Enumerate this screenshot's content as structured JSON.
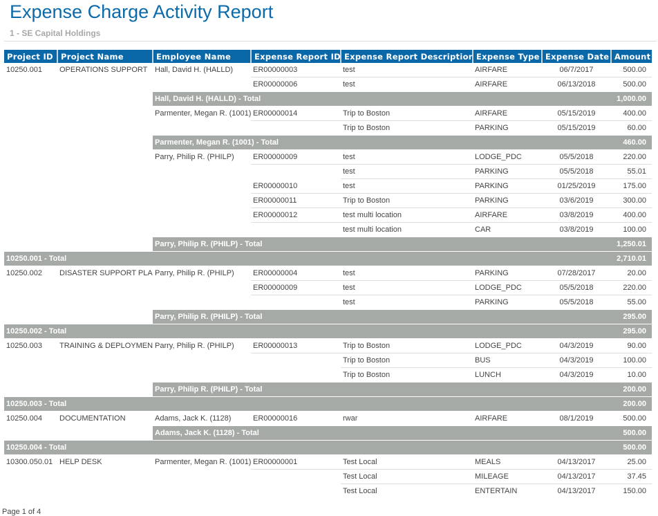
{
  "title": "Expense Charge Activity Report",
  "subtitle": "1 - SE Capital Holdings",
  "columns": [
    "Project ID",
    "Project Name",
    "Employee Name",
    "Expense Report ID",
    "Expense Report Description",
    "Expense Type",
    "Expense Date",
    "Amount"
  ],
  "rows": [
    {
      "type": "data",
      "cells": [
        "10250.001",
        "OPERATIONS SUPPORT",
        "Hall, David H. (HALLD)",
        "ER00000003",
        "test",
        "AIRFARE",
        "06/7/2017",
        "500.00"
      ]
    },
    {
      "type": "data",
      "cells": [
        "",
        "",
        "",
        "ER00000006",
        "test",
        "AIRFARE",
        "06/13/2018",
        "500.00"
      ]
    },
    {
      "type": "emp",
      "label": "Hall, David H. (HALLD) - Total",
      "amount": "1,000.00"
    },
    {
      "type": "data",
      "cells": [
        "",
        "",
        "Parmenter, Megan R. (1001)",
        "ER00000014",
        "Trip to Boston",
        "AIRFARE",
        "05/15/2019",
        "400.00"
      ]
    },
    {
      "type": "data",
      "cells": [
        "",
        "",
        "",
        "",
        "Trip to Boston",
        "PARKING",
        "05/15/2019",
        "60.00"
      ]
    },
    {
      "type": "emp",
      "label": "Parmenter, Megan R. (1001) - Total",
      "amount": "460.00"
    },
    {
      "type": "data",
      "cells": [
        "",
        "",
        "Parry, Philip R. (PHILP)",
        "ER00000009",
        "test",
        "LODGE_PDC",
        "05/5/2018",
        "220.00"
      ]
    },
    {
      "type": "data",
      "cells": [
        "",
        "",
        "",
        "",
        "test",
        "PARKING",
        "05/5/2018",
        "55.01"
      ]
    },
    {
      "type": "data",
      "cells": [
        "",
        "",
        "",
        "ER00000010",
        "test",
        "PARKING",
        "01/25/2019",
        "175.00"
      ]
    },
    {
      "type": "data",
      "cells": [
        "",
        "",
        "",
        "ER00000011",
        "Trip to Boston",
        "PARKING",
        "03/6/2019",
        "300.00"
      ]
    },
    {
      "type": "data",
      "cells": [
        "",
        "",
        "",
        "ER00000012",
        "test multi location",
        "AIRFARE",
        "03/8/2019",
        "400.00"
      ]
    },
    {
      "type": "data",
      "cells": [
        "",
        "",
        "",
        "",
        "test multi location",
        "CAR",
        "03/8/2019",
        "100.00"
      ]
    },
    {
      "type": "emp",
      "label": "Parry, Philip R. (PHILP) - Total",
      "amount": "1,250.01"
    },
    {
      "type": "proj",
      "label": "10250.001 - Total",
      "amount": "2,710.01"
    },
    {
      "type": "data",
      "cells": [
        "10250.002",
        "DISASTER SUPPORT PLAN",
        "Parry, Philip R. (PHILP)",
        "ER00000004",
        "test",
        "PARKING",
        "07/28/2017",
        "20.00"
      ]
    },
    {
      "type": "data",
      "cells": [
        "",
        "",
        "",
        "ER00000009",
        "test",
        "LODGE_PDC",
        "05/5/2018",
        "220.00"
      ]
    },
    {
      "type": "data",
      "cells": [
        "",
        "",
        "",
        "",
        "test",
        "PARKING",
        "05/5/2018",
        "55.00"
      ]
    },
    {
      "type": "emp",
      "label": "Parry, Philip R. (PHILP) - Total",
      "amount": "295.00"
    },
    {
      "type": "proj",
      "label": "10250.002 - Total",
      "amount": "295.00"
    },
    {
      "type": "data",
      "cells": [
        "10250.003",
        "TRAINING & DEPLOYMENT",
        "Parry, Philip R. (PHILP)",
        "ER00000013",
        "Trip to Boston",
        "LODGE_PDC",
        "04/3/2019",
        "90.00"
      ]
    },
    {
      "type": "data",
      "cells": [
        "",
        "",
        "",
        "",
        "Trip to Boston",
        "BUS",
        "04/3/2019",
        "100.00"
      ]
    },
    {
      "type": "data",
      "cells": [
        "",
        "",
        "",
        "",
        "Trip to Boston",
        "LUNCH",
        "04/3/2019",
        "10.00"
      ]
    },
    {
      "type": "emp",
      "label": "Parry, Philip R. (PHILP) - Total",
      "amount": "200.00"
    },
    {
      "type": "proj",
      "label": "10250.003 - Total",
      "amount": "200.00"
    },
    {
      "type": "data",
      "cells": [
        "10250.004",
        "DOCUMENTATION",
        "Adams, Jack K. (1128)",
        "ER00000016",
        "rwar",
        "AIRFARE",
        "08/1/2019",
        "500.00"
      ]
    },
    {
      "type": "emp",
      "label": "Adams, Jack K. (1128) - Total",
      "amount": "500.00"
    },
    {
      "type": "proj",
      "label": "10250.004 - Total",
      "amount": "500.00"
    },
    {
      "type": "data",
      "cells": [
        "10300.050.01",
        "HELP DESK",
        "Parmenter, Megan R. (1001)",
        "ER00000001",
        "Test Local",
        "MEALS",
        "04/13/2017",
        "25.00"
      ]
    },
    {
      "type": "data",
      "cells": [
        "",
        "",
        "",
        "",
        "Test Local",
        "MILEAGE",
        "04/13/2017",
        "37.45"
      ]
    },
    {
      "type": "data",
      "cells": [
        "",
        "",
        "",
        "",
        "Test Local",
        "ENTERTAIN",
        "04/13/2017",
        "150.00"
      ]
    }
  ],
  "footer": "Page 1 of 4"
}
